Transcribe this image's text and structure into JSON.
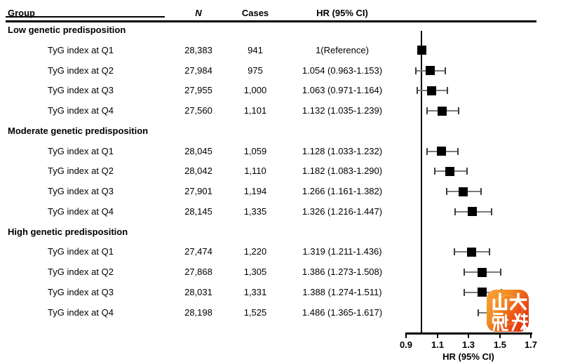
{
  "header": {
    "columns": [
      "Group",
      "N",
      "Cases",
      "HR (95% CI)"
    ]
  },
  "chart_data": {
    "type": "scatter",
    "variant": "forest-plot",
    "title": "",
    "xlabel": "HR (95% CI)",
    "xlim": [
      0.9,
      1.7
    ],
    "xtick_values": [
      0.9,
      1.1,
      1.3,
      1.5,
      1.7
    ],
    "xtick_labels": [
      "0.9",
      "1.1",
      "1.3",
      "1.5",
      "1.7"
    ],
    "reference_line_x": 1.0,
    "marker": "black-square",
    "groups": [
      {
        "label": "Low genetic predisposition",
        "rows": [
          {
            "label": "TyG index at Q1",
            "n": "28,383",
            "cases": "941",
            "hr_text": "1(Reference)",
            "hr": 1.0,
            "lo": null,
            "hi": null
          },
          {
            "label": "TyG index at Q2",
            "n": "27,984",
            "cases": "975",
            "hr_text": "1.054 (0.963-1.153)",
            "hr": 1.054,
            "lo": 0.963,
            "hi": 1.153
          },
          {
            "label": "TyG index at Q3",
            "n": "27,955",
            "cases": "1,000",
            "hr_text": "1.063 (0.971-1.164)",
            "hr": 1.063,
            "lo": 0.971,
            "hi": 1.164
          },
          {
            "label": "TyG index at Q4",
            "n": "27,560",
            "cases": "1,101",
            "hr_text": "1.132 (1.035-1.239)",
            "hr": 1.132,
            "lo": 1.035,
            "hi": 1.239
          }
        ]
      },
      {
        "label": "Moderate genetic predisposition",
        "rows": [
          {
            "label": "TyG index at Q1",
            "n": "28,045",
            "cases": "1,059",
            "hr_text": "1.128 (1.033-1.232)",
            "hr": 1.128,
            "lo": 1.033,
            "hi": 1.232
          },
          {
            "label": "TyG index at Q2",
            "n": "28,042",
            "cases": "1,110",
            "hr_text": "1.182 (1.083-1.290)",
            "hr": 1.182,
            "lo": 1.083,
            "hi": 1.29
          },
          {
            "label": "TyG index at Q3",
            "n": "27,901",
            "cases": "1,194",
            "hr_text": "1.266 (1.161-1.382)",
            "hr": 1.266,
            "lo": 1.161,
            "hi": 1.382
          },
          {
            "label": "TyG index at Q4",
            "n": "28,145",
            "cases": "1,335",
            "hr_text": "1.326 (1.216-1.447)",
            "hr": 1.326,
            "lo": 1.216,
            "hi": 1.447
          }
        ]
      },
      {
        "label": "High genetic predisposition",
        "rows": [
          {
            "label": "TyG index at Q1",
            "n": "27,474",
            "cases": "1,220",
            "hr_text": "1.319 (1.211-1.436)",
            "hr": 1.319,
            "lo": 1.211,
            "hi": 1.436
          },
          {
            "label": "TyG index at Q2",
            "n": "27,868",
            "cases": "1,305",
            "hr_text": "1.386 (1.273-1.508)",
            "hr": 1.386,
            "lo": 1.273,
            "hi": 1.508
          },
          {
            "label": "TyG index at Q3",
            "n": "28,031",
            "cases": "1,331",
            "hr_text": "1.388 (1.274-1.511)",
            "hr": 1.388,
            "lo": 1.274,
            "hi": 1.511
          },
          {
            "label": "TyG index at Q4",
            "n": "28,198",
            "cases": "1,525",
            "hr_text": "1.486 (1.365-1.617)",
            "hr": 1.486,
            "lo": 1.365,
            "hi": 1.617
          }
        ]
      }
    ]
  },
  "watermark": {
    "text": "山大融媒",
    "line1": "山大",
    "line2": "融媒",
    "color_top": "#f8a73f",
    "color_bottom": "#dd2b0e",
    "text_color": "#ffffff"
  }
}
